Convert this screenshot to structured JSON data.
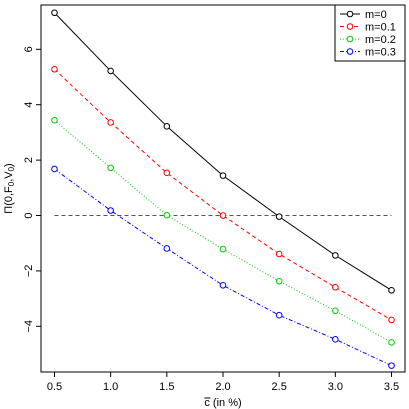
{
  "chart_data": {
    "type": "line",
    "title": "",
    "xlabel_main": "c",
    "xlabel_suffix": " (in %)",
    "ylabel": "Π(0,F0,V0)",
    "ylabel_parts": {
      "base": "Π(0,F",
      "sub1": "0",
      "mid": ",V",
      "sub2": "0",
      "end": ")"
    },
    "x": [
      0.5,
      1.0,
      1.5,
      2.0,
      2.5,
      3.0,
      3.5
    ],
    "xticks": [
      0.5,
      1.0,
      1.5,
      2.0,
      2.5,
      3.0,
      3.5
    ],
    "xtick_labels": [
      "0.5",
      "1.0",
      "1.5",
      "2.0",
      "2.5",
      "3.0",
      "3.5"
    ],
    "yticks": [
      -4,
      -2,
      0,
      2,
      4,
      6
    ],
    "ytick_labels": [
      "−4",
      "−2",
      "0",
      "2",
      "4",
      "6"
    ],
    "xlim": [
      0.38,
      3.62
    ],
    "ylim": [
      -5.65,
      7.6
    ],
    "reference_line": {
      "y": 0,
      "color": "#555555",
      "style": "dashed"
    },
    "legend_position": "top-right",
    "grid": false,
    "series": [
      {
        "name": "m=0",
        "color": "#000000",
        "dash": "none",
        "values": [
          7.32,
          5.22,
          3.22,
          1.44,
          -0.04,
          -1.44,
          -2.7
        ]
      },
      {
        "name": "m=0.1",
        "color": "#ff0000",
        "dash": "4,3",
        "values": [
          5.28,
          3.36,
          1.54,
          0.0,
          -1.39,
          -2.59,
          -3.77
        ]
      },
      {
        "name": "m=0.2",
        "color": "#00cc00",
        "dash": "1,2",
        "values": [
          3.44,
          1.72,
          0.01,
          -1.21,
          -2.37,
          -3.44,
          -4.58
        ]
      },
      {
        "name": "m=0.3",
        "color": "#0000ff",
        "dash": "4,2,1,2",
        "values": [
          1.68,
          0.18,
          -1.19,
          -2.52,
          -3.6,
          -4.47,
          -5.42
        ]
      }
    ]
  }
}
